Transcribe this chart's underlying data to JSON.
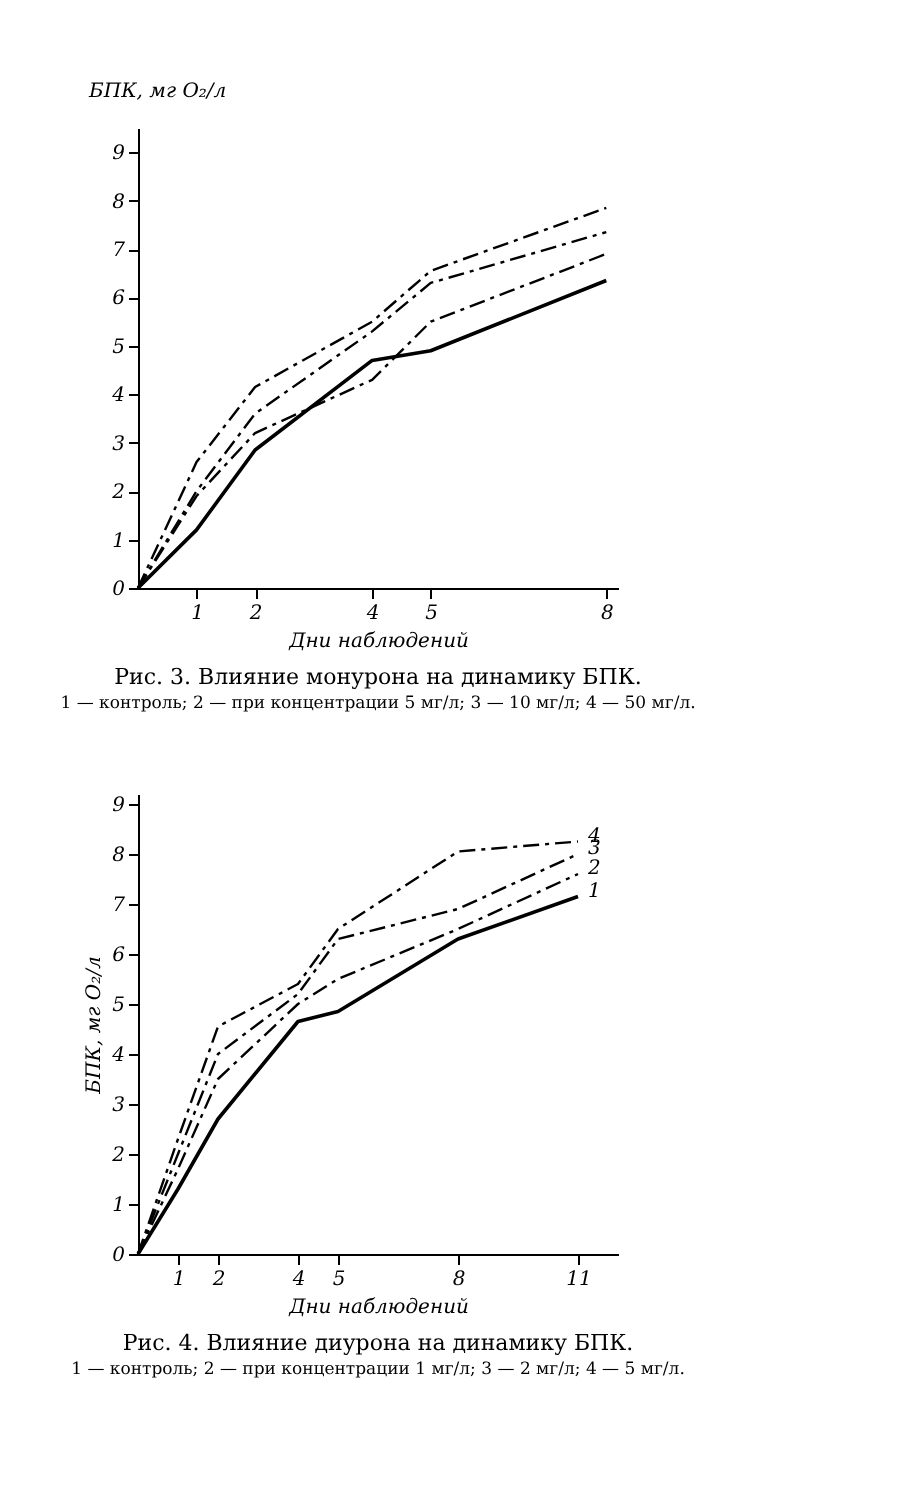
{
  "chart_data": [
    {
      "type": "line",
      "title": "Рис. 3. Влияние монурона на динамику БПК.",
      "subtitle": "1 — контроль; 2 — при концентрации 5 мг/л; 3 — 10 мг/л; 4 — 50 мг/л.",
      "xlabel": "Дни наблюдений",
      "ylabel": "БПК, мг O₂/л",
      "x": [
        0,
        1,
        2,
        4,
        5,
        8
      ],
      "xlim": [
        0,
        8.2
      ],
      "xticks": [
        1,
        2,
        4,
        5,
        8
      ],
      "ylim": [
        0,
        9.5
      ],
      "yticks": [
        0,
        1,
        2,
        3,
        4,
        5,
        6,
        7,
        8,
        9
      ],
      "grid": false,
      "marker": "none",
      "series": [
        {
          "color": "#000000",
          "line_style": "solid",
          "values": [
            0,
            1.2,
            2.85,
            4.7,
            4.9,
            6.35
          ]
        },
        {
          "color": "#000000",
          "line_style": "dashed",
          "values": [
            0,
            1.9,
            3.2,
            4.3,
            5.5,
            6.9
          ]
        },
        {
          "color": "#000000",
          "line_style": "dashed",
          "values": [
            0,
            2.0,
            3.6,
            5.3,
            6.3,
            7.35
          ]
        },
        {
          "color": "#000000",
          "line_style": "dashed",
          "values": [
            0,
            2.6,
            4.15,
            5.5,
            6.55,
            7.85
          ]
        }
      ]
    },
    {
      "type": "line",
      "title": "Рис. 4. Влияние диурона на динамику БПК.",
      "subtitle": "1 — контроль; 2 — при концентрации 1 мг/л; 3 — 2 мг/л; 4 — 5 мг/л.",
      "xlabel": "Дни наблюдений",
      "ylabel": "БПК, мг O₂/л",
      "x": [
        0,
        1,
        2,
        4,
        5,
        8,
        11
      ],
      "xlim": [
        0,
        12
      ],
      "xticks": [
        1,
        2,
        4,
        5,
        8,
        11
      ],
      "ylim": [
        0,
        9.2
      ],
      "yticks": [
        0,
        1,
        2,
        3,
        4,
        5,
        6,
        7,
        8,
        9
      ],
      "grid": false,
      "marker": "none",
      "series": [
        {
          "name": "1",
          "color": "#000000",
          "line_style": "solid",
          "values": [
            0,
            1.3,
            2.7,
            4.65,
            4.85,
            6.3,
            7.15
          ]
        },
        {
          "name": "2",
          "color": "#000000",
          "line_style": "dashed",
          "values": [
            0,
            1.7,
            3.5,
            5.0,
            5.5,
            6.5,
            7.6
          ]
        },
        {
          "name": "3",
          "color": "#000000",
          "line_style": "dashed",
          "values": [
            0,
            2.0,
            4.0,
            5.2,
            6.3,
            6.9,
            8.0
          ]
        },
        {
          "name": "4",
          "color": "#000000",
          "line_style": "dashed",
          "values": [
            0,
            2.3,
            4.55,
            5.4,
            6.5,
            8.05,
            8.25
          ]
        }
      ]
    }
  ]
}
